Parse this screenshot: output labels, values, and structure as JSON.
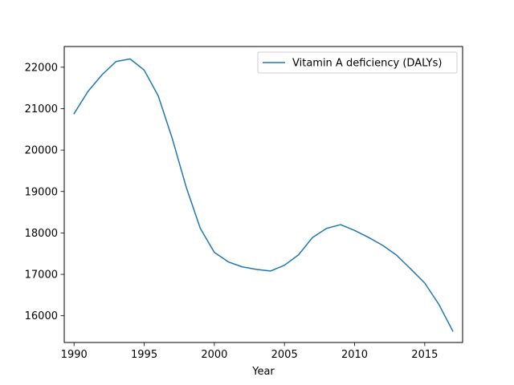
{
  "chart_data": {
    "type": "line",
    "title": "",
    "xlabel": "Year",
    "ylabel": "",
    "xlim": [
      1989.3,
      2017.7
    ],
    "ylim": [
      15355,
      22500
    ],
    "xticks": [
      1990,
      1995,
      2000,
      2005,
      2010,
      2015
    ],
    "yticks": [
      16000,
      17000,
      18000,
      19000,
      20000,
      21000,
      22000
    ],
    "grid": false,
    "legend_position": "top-right",
    "series": [
      {
        "name": "Vitamin A deficiency (DALYs)",
        "color": "#1f77b4",
        "x": [
          1990,
          1991,
          1992,
          1993,
          1994,
          1995,
          1996,
          1997,
          1998,
          1999,
          2000,
          2001,
          2002,
          2003,
          2004,
          2005,
          2006,
          2007,
          2008,
          2009,
          2010,
          2011,
          2012,
          2013,
          2014,
          2015,
          2016,
          2017
        ],
        "y": [
          20880,
          21420,
          21820,
          22140,
          22200,
          21930,
          21310,
          20280,
          19100,
          18110,
          17530,
          17300,
          17180,
          17120,
          17080,
          17220,
          17470,
          17890,
          18110,
          18200,
          18060,
          17890,
          17700,
          17460,
          17130,
          16790,
          16280,
          15630
        ]
      }
    ]
  }
}
